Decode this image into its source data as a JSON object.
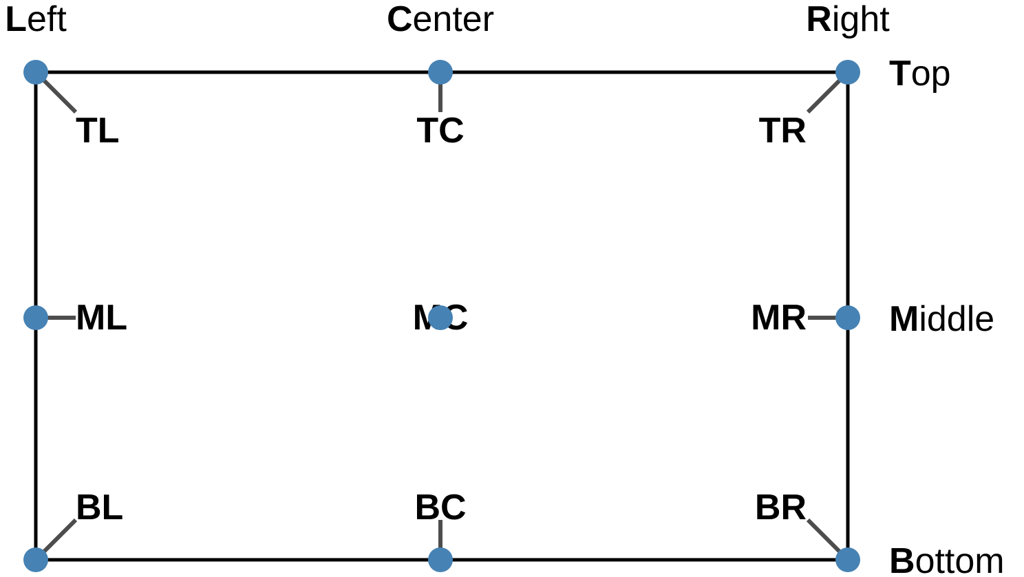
{
  "columns": [
    "Left",
    "Center",
    "Right"
  ],
  "rows": [
    "Top",
    "Middle",
    "Bottom"
  ],
  "nodes": [
    {
      "label": "TL"
    },
    {
      "label": "TC"
    },
    {
      "label": "TR"
    },
    {
      "label": "ML"
    },
    {
      "label": "MC"
    },
    {
      "label": "MR"
    },
    {
      "label": "BL"
    },
    {
      "label": "BC"
    },
    {
      "label": "BR"
    }
  ]
}
